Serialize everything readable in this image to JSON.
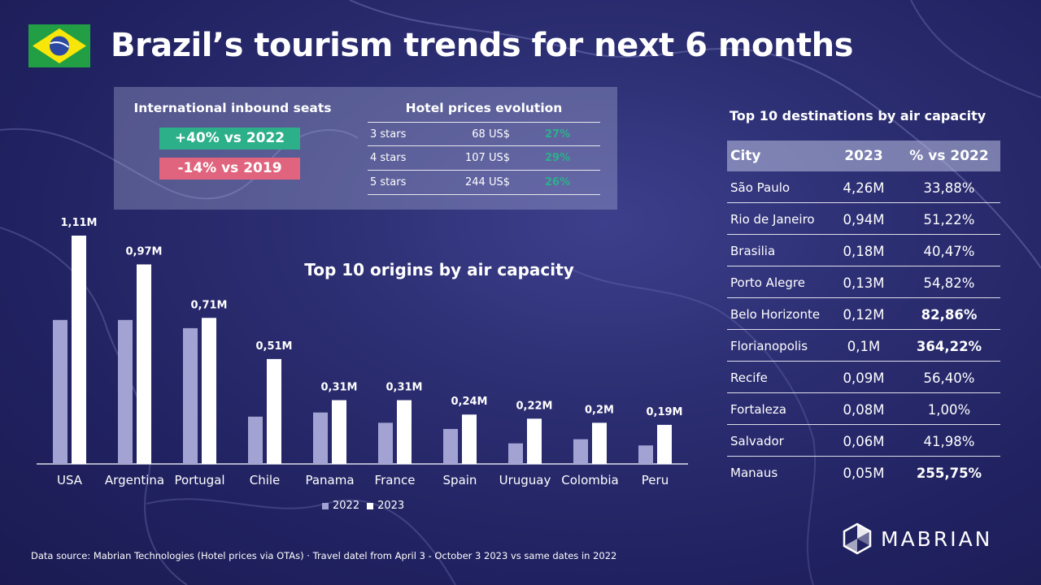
{
  "header": {
    "title": "Brazil’s tourism trends for next 6 months",
    "flag_icon": "brazil-flag-icon"
  },
  "inbound_seats": {
    "label": "International inbound seats",
    "vs_2022": "+40% vs 2022",
    "vs_2019": "-14% vs 2019",
    "positive_color": "#2cb08a",
    "negative_color": "#e0647d"
  },
  "hotel_prices": {
    "title": "Hotel prices evolution",
    "rows": [
      {
        "stars": "3 stars",
        "price": "68 US$",
        "change": "27%"
      },
      {
        "stars": "4 stars",
        "price": "107 US$",
        "change": "29%"
      },
      {
        "stars": "5 stars",
        "price": "244 US$",
        "change": "26%"
      }
    ]
  },
  "chart_data": {
    "type": "bar",
    "title": "Top 10 origins by air capacity",
    "xlabel": "",
    "ylabel": "",
    "categories": [
      "USA",
      "Argentina",
      "Portugal",
      "Chile",
      "Panama",
      "France",
      "Spain",
      "Uruguay",
      "Colombia",
      "Peru"
    ],
    "series": [
      {
        "name": "2022",
        "values": [
          0.7,
          0.7,
          0.66,
          0.23,
          0.25,
          0.2,
          0.17,
          0.1,
          0.12,
          0.09
        ],
        "color": "#a3a3d3"
      },
      {
        "name": "2023",
        "values": [
          1.11,
          0.97,
          0.71,
          0.51,
          0.31,
          0.31,
          0.24,
          0.22,
          0.2,
          0.19
        ],
        "color": "#ffffff"
      }
    ],
    "data_labels_2023": [
      "1,11M",
      "0,97M",
      "0,71M",
      "0,51M",
      "0,31M",
      "0,31M",
      "0,24M",
      "0,22M",
      "0,2M",
      "0,19M"
    ],
    "ylim": [
      0,
      1.2
    ],
    "grid": false,
    "legend_position": "bottom-center"
  },
  "legend": {
    "label_2022": "2022",
    "label_2023": "2023"
  },
  "destinations": {
    "title": "Top 10 destinations by air capacity",
    "headers": {
      "city": "City",
      "year": "2023",
      "change": "% vs 2022"
    },
    "rows": [
      {
        "city": "São Paulo",
        "value": "4,26M",
        "change": "33,88%",
        "highlight": false
      },
      {
        "city": "Rio de Janeiro",
        "value": "0,94M",
        "change": "51,22%",
        "highlight": false
      },
      {
        "city": "Brasilia",
        "value": "0,18M",
        "change": "40,47%",
        "highlight": false
      },
      {
        "city": "Porto Alegre",
        "value": "0,13M",
        "change": "54,82%",
        "highlight": false
      },
      {
        "city": "Belo Horizonte",
        "value": "0,12M",
        "change": "82,86%",
        "highlight": true
      },
      {
        "city": "Florianopolis",
        "value": "0,1M",
        "change": "364,22%",
        "highlight": true
      },
      {
        "city": "Recife",
        "value": "0,09M",
        "change": "56,40%",
        "highlight": false
      },
      {
        "city": "Fortaleza",
        "value": "0,08M",
        "change": "1,00%",
        "highlight": false
      },
      {
        "city": "Salvador",
        "value": "0,06M",
        "change": "41,98%",
        "highlight": false
      },
      {
        "city": "Manaus",
        "value": "0,05M",
        "change": "255,75%",
        "highlight": true
      }
    ]
  },
  "footer": {
    "source": "Data source: Mabrian Technologies (Hotel prices via OTAs) · Travel datel from April 3 - October 3 2023 vs same dates in 2022",
    "brand": "MABRIAN",
    "brand_icon": "mabrian-logo-icon"
  }
}
